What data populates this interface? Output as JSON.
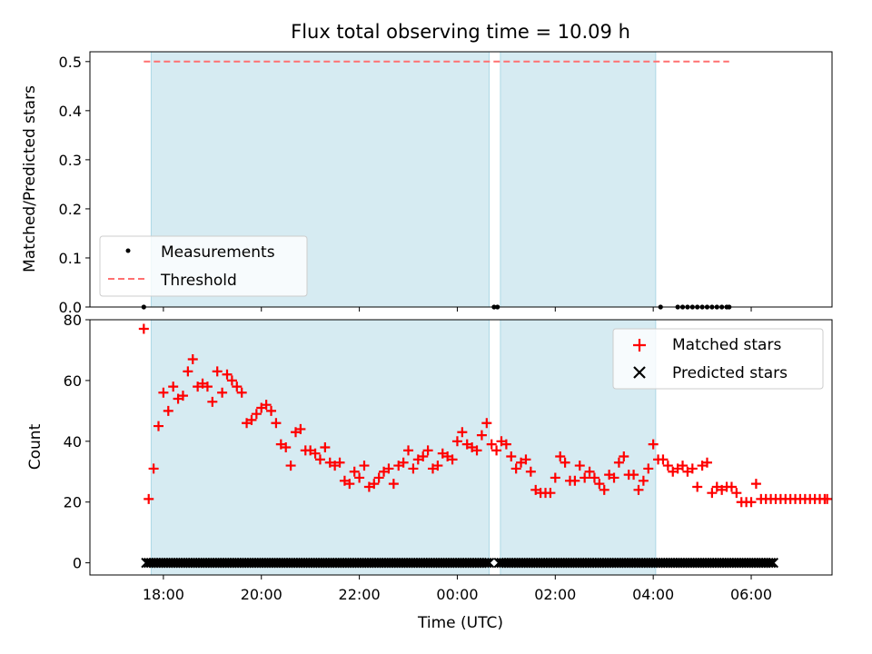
{
  "chart_data": [
    {
      "type": "scatter",
      "title": "Flux total observing time = 10.09 h",
      "xlabel": "",
      "ylabel": "Matched/Predicted stars",
      "ylim": [
        0,
        0.52
      ],
      "yticks": [
        0.0,
        0.1,
        0.2,
        0.3,
        0.4,
        0.5
      ],
      "ytick_labels": [
        "0.0",
        "0.1",
        "0.2",
        "0.3",
        "0.4",
        "0.5"
      ],
      "shaded_spans_h": [
        [
          17.75,
          0.65
        ],
        [
          0.88,
          4.05
        ]
      ],
      "series": [
        {
          "name": "Measurements",
          "marker": "dot",
          "color": "#000000",
          "points": [
            [
              17.6,
              0.0
            ],
            [
              0.75,
              0.0
            ],
            [
              0.82,
              0.0
            ],
            [
              4.15,
              0.0
            ],
            [
              4.5,
              0.0
            ],
            [
              4.6,
              0.0
            ],
            [
              4.7,
              0.0
            ],
            [
              4.8,
              0.0
            ],
            [
              4.9,
              0.0
            ],
            [
              5.0,
              0.0
            ],
            [
              5.1,
              0.0
            ],
            [
              5.2,
              0.0
            ],
            [
              5.3,
              0.0
            ],
            [
              5.4,
              0.0
            ],
            [
              5.5,
              0.0
            ],
            [
              5.55,
              0.0
            ]
          ]
        },
        {
          "name": "Threshold",
          "marker": "dashed-line",
          "color": "#ff7070",
          "points": [
            [
              17.6,
              0.5
            ],
            [
              5.55,
              0.5
            ]
          ]
        }
      ],
      "legend": {
        "position": "lower-left",
        "entries": [
          "Measurements",
          "Threshold"
        ]
      }
    },
    {
      "type": "scatter",
      "title": "",
      "xlabel": "Time (UTC)",
      "ylabel": "Count",
      "ylim": [
        -4,
        80
      ],
      "yticks": [
        0,
        20,
        40,
        60,
        80
      ],
      "ytick_labels": [
        "0",
        "20",
        "40",
        "60",
        "80"
      ],
      "x_ticks_h": [
        18,
        20,
        22,
        0,
        2,
        4,
        6
      ],
      "x_tick_labels": [
        "18:00",
        "20:00",
        "22:00",
        "00:00",
        "02:00",
        "04:00",
        "06:00"
      ],
      "shaded_spans_h": [
        [
          17.75,
          0.65
        ],
        [
          0.88,
          4.05
        ]
      ],
      "series": [
        {
          "name": "Matched stars",
          "marker": "plus",
          "color": "#ff0000",
          "points": [
            [
              17.6,
              77
            ],
            [
              17.7,
              21
            ],
            [
              17.8,
              31
            ],
            [
              17.9,
              45
            ],
            [
              18.0,
              56
            ],
            [
              18.1,
              50
            ],
            [
              18.2,
              58
            ],
            [
              18.3,
              54
            ],
            [
              18.4,
              55
            ],
            [
              18.5,
              63
            ],
            [
              18.6,
              67
            ],
            [
              18.7,
              58
            ],
            [
              18.8,
              59
            ],
            [
              18.9,
              58
            ],
            [
              19.0,
              53
            ],
            [
              19.1,
              63
            ],
            [
              19.2,
              56
            ],
            [
              19.3,
              62
            ],
            [
              19.4,
              60
            ],
            [
              19.5,
              58
            ],
            [
              19.6,
              56
            ],
            [
              19.7,
              46
            ],
            [
              19.8,
              47
            ],
            [
              19.9,
              49
            ],
            [
              20.0,
              51
            ],
            [
              20.1,
              52
            ],
            [
              20.2,
              50
            ],
            [
              20.3,
              46
            ],
            [
              20.4,
              39
            ],
            [
              20.5,
              38
            ],
            [
              20.6,
              32
            ],
            [
              20.7,
              43
            ],
            [
              20.8,
              44
            ],
            [
              20.9,
              37
            ],
            [
              21.0,
              37
            ],
            [
              21.1,
              36
            ],
            [
              21.2,
              34
            ],
            [
              21.3,
              38
            ],
            [
              21.4,
              33
            ],
            [
              21.5,
              32
            ],
            [
              21.6,
              33
            ],
            [
              21.7,
              27
            ],
            [
              21.8,
              26
            ],
            [
              21.9,
              30
            ],
            [
              22.0,
              28
            ],
            [
              22.1,
              32
            ],
            [
              22.2,
              25
            ],
            [
              22.3,
              26
            ],
            [
              22.4,
              28
            ],
            [
              22.5,
              30
            ],
            [
              22.6,
              31
            ],
            [
              22.7,
              26
            ],
            [
              22.8,
              32
            ],
            [
              22.9,
              33
            ],
            [
              23.0,
              37
            ],
            [
              23.1,
              31
            ],
            [
              23.2,
              34
            ],
            [
              23.3,
              35
            ],
            [
              23.4,
              37
            ],
            [
              23.5,
              31
            ],
            [
              23.6,
              32
            ],
            [
              23.7,
              36
            ],
            [
              23.8,
              35
            ],
            [
              23.9,
              34
            ],
            [
              24.0,
              40
            ],
            [
              24.1,
              43
            ],
            [
              24.2,
              39
            ],
            [
              24.3,
              38
            ],
            [
              24.4,
              37
            ],
            [
              24.5,
              42
            ],
            [
              24.6,
              46
            ],
            [
              24.7,
              39
            ],
            [
              24.8,
              37
            ],
            [
              24.9,
              40
            ],
            [
              25.0,
              39
            ],
            [
              25.1,
              35
            ],
            [
              25.2,
              31
            ],
            [
              25.3,
              33
            ],
            [
              25.4,
              34
            ],
            [
              25.5,
              30
            ],
            [
              25.6,
              24
            ],
            [
              25.7,
              23
            ],
            [
              25.8,
              23
            ],
            [
              25.9,
              23
            ],
            [
              26.0,
              28
            ],
            [
              26.1,
              35
            ],
            [
              26.2,
              33
            ],
            [
              26.3,
              27
            ],
            [
              26.4,
              27
            ],
            [
              26.5,
              32
            ],
            [
              26.6,
              28
            ],
            [
              26.7,
              30
            ],
            [
              26.8,
              28
            ],
            [
              26.9,
              26
            ],
            [
              27.0,
              24
            ],
            [
              27.1,
              29
            ],
            [
              27.2,
              28
            ],
            [
              27.3,
              33
            ],
            [
              27.4,
              35
            ],
            [
              27.5,
              29
            ],
            [
              27.6,
              29
            ],
            [
              27.7,
              24
            ],
            [
              27.8,
              27
            ],
            [
              27.9,
              31
            ],
            [
              28.0,
              39
            ],
            [
              28.1,
              34
            ],
            [
              28.2,
              34
            ],
            [
              28.3,
              32
            ],
            [
              28.4,
              30
            ],
            [
              28.5,
              31
            ],
            [
              28.6,
              32
            ],
            [
              28.7,
              30
            ],
            [
              28.8,
              31
            ],
            [
              28.9,
              25
            ],
            [
              29.0,
              32
            ],
            [
              29.1,
              33
            ],
            [
              29.2,
              23
            ],
            [
              29.3,
              25
            ],
            [
              29.4,
              24
            ],
            [
              29.5,
              25
            ],
            [
              29.6,
              25
            ],
            [
              29.7,
              23
            ],
            [
              29.8,
              20
            ],
            [
              29.9,
              20
            ],
            [
              30.0,
              20
            ],
            [
              30.1,
              26
            ],
            [
              30.2,
              21
            ],
            [
              30.3,
              21
            ],
            [
              30.4,
              21
            ],
            [
              30.5,
              21
            ],
            [
              30.6,
              21
            ],
            [
              30.7,
              21
            ],
            [
              30.8,
              21
            ],
            [
              30.9,
              21
            ],
            [
              31.0,
              21
            ],
            [
              31.1,
              21
            ],
            [
              31.2,
              21
            ],
            [
              31.3,
              21
            ],
            [
              31.4,
              21
            ],
            [
              31.5,
              21
            ],
            [
              31.55,
              21
            ]
          ]
        },
        {
          "name": "Predicted stars",
          "marker": "x",
          "color": "#000000",
          "value": 0,
          "x_range_h": [
            17.65,
            30.45
          ],
          "gap_h": [
            24.7,
            24.85
          ]
        }
      ],
      "legend": {
        "position": "top-right",
        "entries": [
          "Matched stars",
          "Predicted stars"
        ]
      }
    }
  ]
}
